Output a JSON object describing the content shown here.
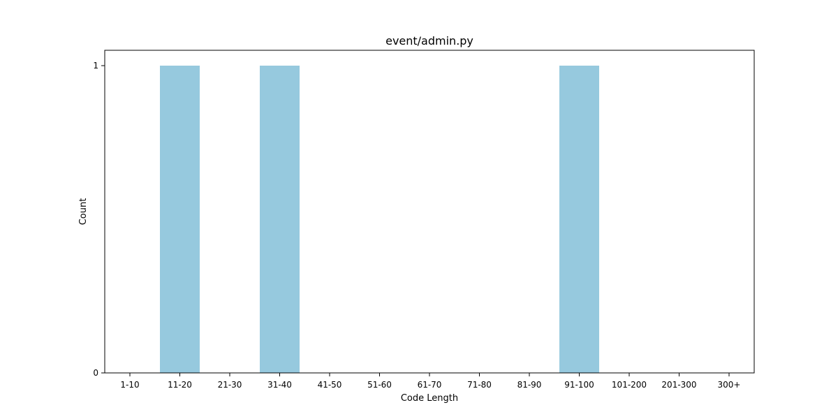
{
  "chart_data": {
    "type": "bar",
    "title": "event/admin.py",
    "xlabel": "Code Length",
    "ylabel": "Count",
    "categories": [
      "1-10",
      "11-20",
      "21-30",
      "31-40",
      "41-50",
      "51-60",
      "61-70",
      "71-80",
      "81-90",
      "91-100",
      "101-200",
      "201-300",
      "300+"
    ],
    "values": [
      0,
      1,
      0,
      1,
      0,
      0,
      0,
      0,
      0,
      1,
      0,
      0,
      0
    ],
    "yticks": [
      0,
      1
    ],
    "ylim": [
      0,
      1.05
    ],
    "grid": false,
    "bar_color": "#96c9de"
  }
}
